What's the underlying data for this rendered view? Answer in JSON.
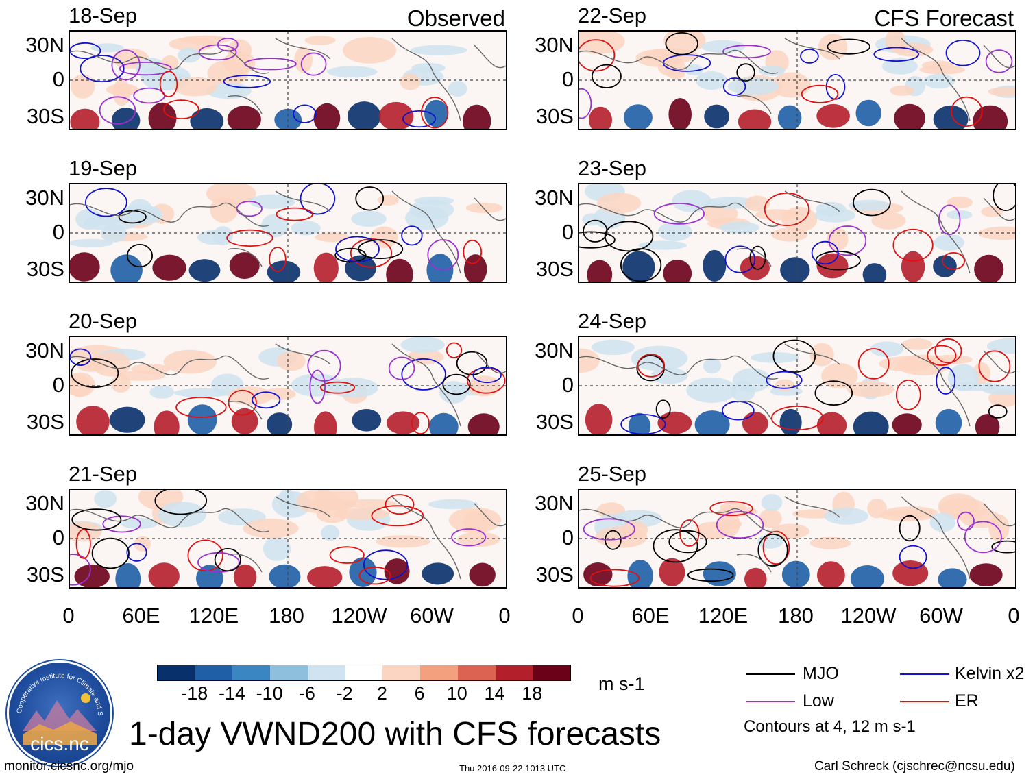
{
  "headers": {
    "left": "Observed",
    "right": "CFS Forecast"
  },
  "panels": [
    {
      "date": "18-Sep",
      "column": "observed"
    },
    {
      "date": "19-Sep",
      "column": "observed"
    },
    {
      "date": "20-Sep",
      "column": "observed"
    },
    {
      "date": "21-Sep",
      "column": "observed"
    },
    {
      "date": "22-Sep",
      "column": "forecast"
    },
    {
      "date": "23-Sep",
      "column": "forecast"
    },
    {
      "date": "24-Sep",
      "column": "forecast"
    },
    {
      "date": "25-Sep",
      "column": "forecast"
    }
  ],
  "y_axis_labels": [
    "30N",
    "0",
    "30S"
  ],
  "x_axis_labels": [
    "0",
    "60E",
    "120E",
    "180",
    "120W",
    "60W",
    "0"
  ],
  "colorbar": {
    "colors": [
      "#08306b",
      "#1f5fa6",
      "#3a86c2",
      "#8ebfdd",
      "#cfe3f0",
      "#ffffff",
      "#fbd5c2",
      "#f2a07e",
      "#dc6352",
      "#b41f2c",
      "#6b0019"
    ],
    "tick_labels": [
      "-18",
      "-14",
      "-10",
      "-6",
      "-2",
      "2",
      "6",
      "10",
      "14",
      "18"
    ],
    "units": "m s-1"
  },
  "legend": {
    "items": [
      {
        "label": "MJO",
        "color": "#000000"
      },
      {
        "label": "Kelvin x2",
        "color": "#1010d0"
      },
      {
        "label": "Low",
        "color": "#9b30d0"
      },
      {
        "label": "ER",
        "color": "#e01010"
      }
    ],
    "note": "Contours at 4, 12 m s-1"
  },
  "logo": {
    "arc_text": "Cooperative Institute for Climate and Satellites",
    "name": "cics.nc"
  },
  "title": "1-day VWND200 with CFS forecasts",
  "footer": {
    "url": "monitor.cicsnc.org/mjo",
    "timestamp": "Thu 2016-09-22 1013 UTC",
    "credit": "Carl Schreck (cjschrec@ncsu.edu)"
  }
}
